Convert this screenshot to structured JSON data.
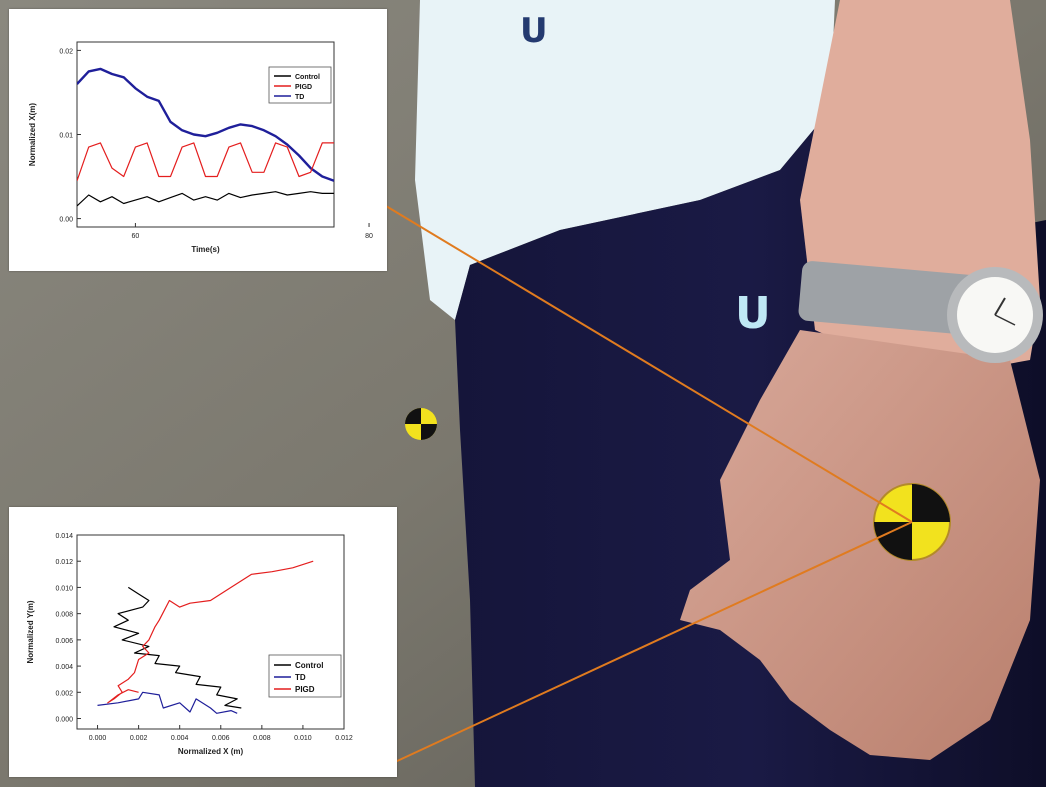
{
  "colors": {
    "control": "#000000",
    "pigd": "#e41e1e",
    "td": "#1f1f9a",
    "leader_line": "#e07b1f",
    "marker_yellow": "#f2e21e"
  },
  "chart_data": [
    {
      "type": "line",
      "title": "",
      "xlabel": "Time(s)",
      "ylabel": "Normalized X(m)",
      "xlim": [
        55,
        77
      ],
      "ylim": [
        -0.001,
        0.021
      ],
      "xticks": [
        "60",
        "80"
      ],
      "yticks": [
        "0.00",
        "0.01",
        "0.02"
      ],
      "legend_placement": "top-right",
      "legend": [
        "Control",
        "PIGD",
        "TD"
      ],
      "series": [
        {
          "name": "TD",
          "x": [
            55,
            56,
            57,
            58,
            59,
            60,
            61,
            62,
            63,
            64,
            65,
            66,
            67,
            68,
            69,
            70,
            71,
            72,
            73,
            74,
            75,
            76,
            77
          ],
          "y": [
            0.016,
            0.0175,
            0.0178,
            0.0172,
            0.0168,
            0.0155,
            0.0145,
            0.014,
            0.0115,
            0.0105,
            0.01,
            0.0098,
            0.0102,
            0.0108,
            0.0112,
            0.011,
            0.0105,
            0.0098,
            0.0088,
            0.0075,
            0.006,
            0.005,
            0.0045
          ]
        },
        {
          "name": "PIGD",
          "x": [
            55,
            56,
            57,
            58,
            59,
            60,
            61,
            62,
            63,
            64,
            65,
            66,
            67,
            68,
            69,
            70,
            71,
            72,
            73,
            74,
            75,
            76,
            77
          ],
          "y": [
            0.0045,
            0.0085,
            0.009,
            0.006,
            0.005,
            0.0085,
            0.009,
            0.005,
            0.005,
            0.0085,
            0.009,
            0.005,
            0.005,
            0.0085,
            0.009,
            0.0055,
            0.0055,
            0.009,
            0.0085,
            0.005,
            0.0055,
            0.009,
            0.009
          ]
        },
        {
          "name": "Control",
          "x": [
            55,
            56,
            57,
            58,
            59,
            60,
            61,
            62,
            63,
            64,
            65,
            66,
            67,
            68,
            69,
            70,
            71,
            72,
            73,
            74,
            75,
            76,
            77
          ],
          "y": [
            0.0015,
            0.0028,
            0.002,
            0.0026,
            0.0018,
            0.0022,
            0.0026,
            0.002,
            0.0025,
            0.003,
            0.0022,
            0.0026,
            0.0022,
            0.003,
            0.0025,
            0.0028,
            0.003,
            0.0032,
            0.0028,
            0.003,
            0.0032,
            0.003,
            0.003
          ]
        }
      ]
    },
    {
      "type": "line",
      "title": "",
      "xlabel": "Normalized X (m)",
      "ylabel": "Normalized Y(m)",
      "xlim": [
        -0.001,
        0.012
      ],
      "ylim": [
        -0.0008,
        0.014
      ],
      "xticks": [
        "0.000",
        "0.002",
        "0.004",
        "0.006",
        "0.008",
        "0.010",
        "0.012"
      ],
      "yticks": [
        "0.000",
        "0.002",
        "0.004",
        "0.006",
        "0.008",
        "0.010",
        "0.012",
        "0.014"
      ],
      "legend_placement": "bottom-right",
      "legend": [
        "Control",
        "TD",
        "PIGD"
      ],
      "series": [
        {
          "name": "Control",
          "x": [
            0.0015,
            0.002,
            0.0025,
            0.0022,
            0.001,
            0.0015,
            0.0008,
            0.002,
            0.0012,
            0.0025,
            0.0018,
            0.003,
            0.0028,
            0.004,
            0.0038,
            0.005,
            0.0048,
            0.006,
            0.0058,
            0.0068,
            0.0062,
            0.007
          ],
          "y": [
            0.01,
            0.0095,
            0.009,
            0.0085,
            0.008,
            0.0075,
            0.007,
            0.0065,
            0.006,
            0.0055,
            0.005,
            0.0048,
            0.0042,
            0.004,
            0.0035,
            0.0032,
            0.0026,
            0.0024,
            0.0018,
            0.0015,
            0.001,
            0.0008
          ]
        },
        {
          "name": "TD",
          "x": [
            0.0,
            0.001,
            0.002,
            0.0022,
            0.003,
            0.0032,
            0.004,
            0.0045,
            0.0048,
            0.0055,
            0.0058,
            0.0065,
            0.0068
          ],
          "y": [
            0.001,
            0.0012,
            0.0015,
            0.002,
            0.0018,
            0.0008,
            0.0012,
            0.0005,
            0.0015,
            0.0008,
            0.0004,
            0.0006,
            0.0004
          ]
        },
        {
          "name": "PIGD",
          "x": [
            0.0105,
            0.0095,
            0.0085,
            0.0075,
            0.0065,
            0.0055,
            0.0045,
            0.004,
            0.0035,
            0.003,
            0.0028,
            0.0025,
            0.0022,
            0.0025,
            0.002,
            0.0018,
            0.0015,
            0.001,
            0.0012,
            0.0008,
            0.0005,
            0.001,
            0.0015,
            0.002
          ],
          "y": [
            0.012,
            0.0115,
            0.0112,
            0.011,
            0.01,
            0.009,
            0.0088,
            0.0085,
            0.009,
            0.0075,
            0.007,
            0.006,
            0.0055,
            0.005,
            0.0045,
            0.0035,
            0.003,
            0.0025,
            0.002,
            0.0015,
            0.0012,
            0.0018,
            0.0022,
            0.002
          ]
        }
      ]
    }
  ]
}
